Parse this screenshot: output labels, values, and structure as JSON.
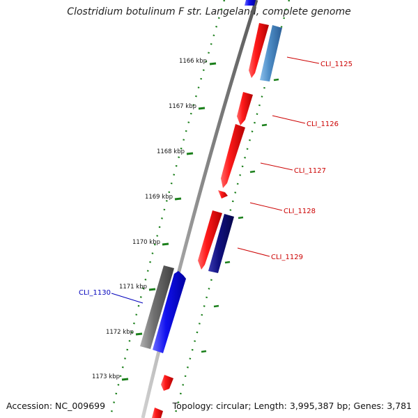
{
  "title": "Clostridium botulinum F str. Langeland, complete genome",
  "footer": {
    "accession": "Accession: NC_009699",
    "summary": "Topology: circular; Length: 3,995,387 bp; Genes: 3,781"
  },
  "colors": {
    "backbone": "#8c8c8c",
    "tick": "#1a7f1a",
    "forward_red": "#e8101a",
    "steelblue": "#4f8fc8",
    "navy": "#101080",
    "blue": "#1010ee",
    "gray_gene": "#707070",
    "label_red": "#cc0000",
    "label_blue": "#0000bb"
  },
  "ticks": [
    {
      "label": "1166 kbp",
      "kbp": 1166
    },
    {
      "label": "1167 kbp",
      "kbp": 1167
    },
    {
      "label": "1168 kbp",
      "kbp": 1168
    },
    {
      "label": "1169 kbp",
      "kbp": 1169
    },
    {
      "label": "1170 kbp",
      "kbp": 1170
    },
    {
      "label": "1171 kbp",
      "kbp": 1171
    },
    {
      "label": "1172 kbp",
      "kbp": 1172
    },
    {
      "label": "1173 kbp",
      "kbp": 1173
    }
  ],
  "gene_labels": [
    {
      "text": "CLI_1125",
      "color": "#cc0000"
    },
    {
      "text": "CLI_1126",
      "color": "#cc0000"
    },
    {
      "text": "CLI_1127",
      "color": "#cc0000"
    },
    {
      "text": "CLI_1128",
      "color": "#cc0000"
    },
    {
      "text": "CLI_1129",
      "color": "#cc0000"
    },
    {
      "text": "CLI_1130",
      "color": "#0000bb"
    }
  ]
}
